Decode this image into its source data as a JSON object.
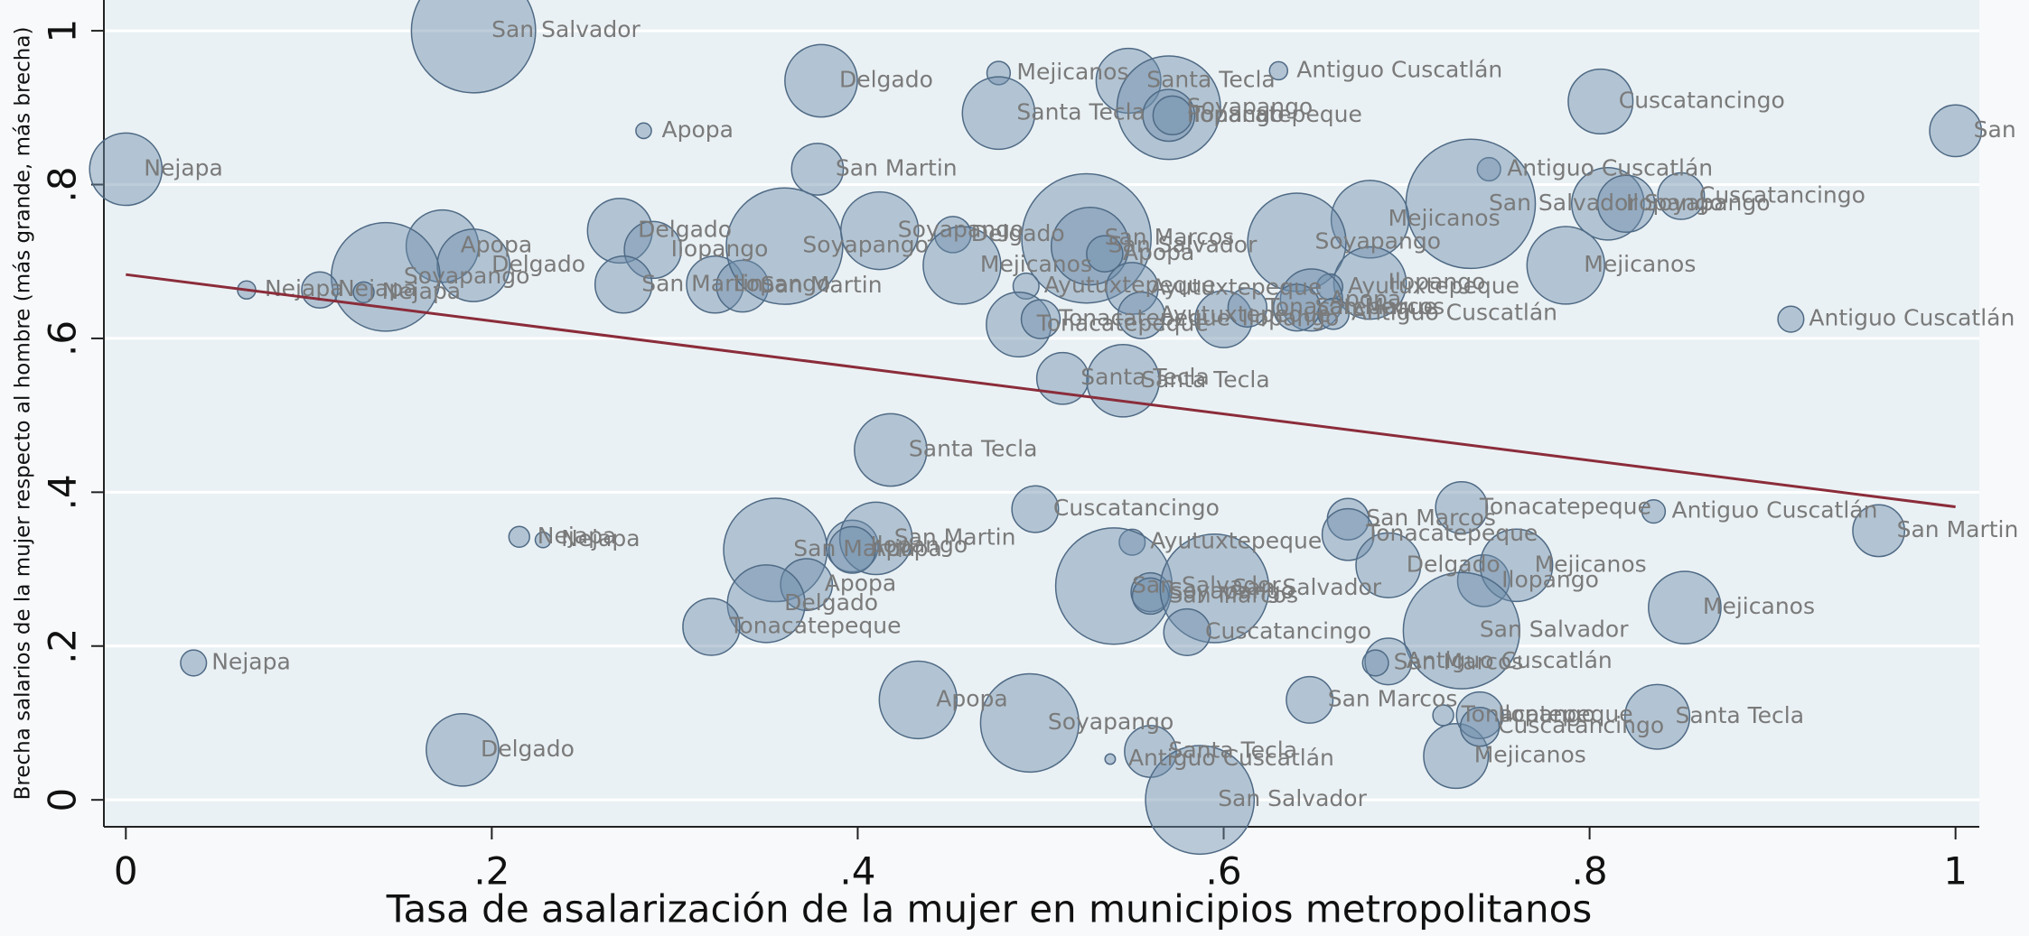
{
  "chart_data": {
    "type": "scatter",
    "x_label": "Tasa de asalarización de la mujer en municipios metropolitanos",
    "y_label": "Brecha salarios de la mujer respecto al hombre (más grande, más brecha)",
    "xlim": [
      -0.012,
      1.013
    ],
    "ylim": [
      -0.035,
      1.04
    ],
    "xticks": [
      0,
      {
        "value": 0.2,
        "label": ".2"
      },
      {
        "value": 0.4,
        "label": ".4"
      },
      {
        "value": 0.6,
        "label": ".6"
      },
      {
        "value": 0.8,
        "label": ".8"
      },
      1
    ],
    "yticks": [
      0,
      {
        "value": 0.2,
        "label": ".2"
      },
      {
        "value": 0.4,
        "label": ".4"
      },
      {
        "value": 0.6,
        "label": ".6"
      },
      {
        "value": 0.8,
        "label": ".8"
      },
      1
    ],
    "grid": true,
    "color": "#6f8eab",
    "fit_color": "#8b2c3a",
    "fit_line": {
      "x": [
        0,
        1
      ],
      "y": [
        0.683,
        0.381
      ]
    },
    "labels": [
      "San Salvador",
      "Delgado",
      "Mejicanos",
      "Antiguo Cuscatlán",
      "Santa Tecla",
      "Soyapango",
      "Ilopango",
      "Tonacatepeque",
      "Santa Tecla",
      "Cuscatancingo",
      "Apopa",
      "Nejapa",
      "San Martin",
      "San",
      "Antiguo Cuscatlán",
      "San Salvador",
      "Ilopango",
      "Soyapango",
      "Cuscatancingo",
      "Mejicanos",
      "Mejicanos",
      "Delgado",
      "Ilopango",
      "Apopa",
      "Delgado",
      "Soyapango",
      "Nejapa",
      "Nejapa",
      "Nejapa",
      "San Martin",
      "Ilopango",
      "San Martin",
      "Soyapango",
      "Soyapango",
      "Delgado",
      "Mejicanos",
      "San Marcos",
      "San Salvador",
      "Apopa",
      "Soyapango",
      "Ayutuxtepeque",
      "Ayutuxtepeque",
      "Ilopango",
      "Ayutuxtepeque",
      "Tonacatepeque",
      "Tonacatepeque",
      "Apopa",
      "San Marcos",
      "Ilopango",
      "Antiguo Cuscatlán",
      "Tonacatepeque",
      "Ayutuxtepeque",
      "Antiguo Cuscatlán",
      "Santa Tecla",
      "Santa Tecla",
      "Santa Tecla",
      "Cuscatancingo",
      "San Marcos",
      "Tonacatepeque",
      "Antiguo Cuscatlán",
      "San Martin",
      "Nejapa",
      "Nejapa",
      "San Martin",
      "Ilopango",
      "San Martin",
      "Apopa",
      "Apopa",
      "Delgado",
      "Tonacatepeque",
      "Ayutuxtepeque",
      "San Salvador",
      "Soyapango",
      "San Marcos",
      "San Salvador",
      "Cuscatancingo",
      "Tonacatepeque",
      "Delgado",
      "Ilopango",
      "Mejicanos",
      "San Salvador",
      "Mejicanos",
      "Antiguo Cuscatlán",
      "San Marcos",
      "San Marcos",
      "Apopa",
      "Soyapango",
      "Nejapa",
      "Delgado",
      "Santa Tecla",
      "Antiguo Cuscatlán",
      "San Salvador",
      "Santa Tecla",
      "Mejicanos",
      "Tonacatepeque",
      "Ilopango",
      "Cuscatancingo"
    ],
    "x": [
      0.19,
      0.38,
      0.477,
      0.63,
      0.548,
      0.57,
      0.57,
      0.572,
      0.477,
      0.806,
      0.283,
      0,
      0.378,
      1.0,
      0.745,
      0.735,
      0.81,
      0.82,
      0.85,
      0.68,
      0.787,
      0.27,
      0.288,
      0.173,
      0.19,
      0.142,
      0.13,
      0.066,
      0.106,
      0.272,
      0.322,
      0.337,
      0.36,
      0.412,
      0.452,
      0.457,
      0.525,
      0.527,
      0.535,
      0.64,
      0.492,
      0.55,
      0.68,
      0.658,
      0.488,
      0.5,
      0.648,
      0.64,
      0.6,
      0.66,
      0.613,
      0.555,
      0.91,
      0.512,
      0.545,
      0.418,
      0.497,
      0.668,
      0.73,
      0.835,
      0.958,
      0.215,
      0.228,
      0.355,
      0.397,
      0.41,
      0.397,
      0.372,
      0.35,
      0.32,
      0.55,
      0.54,
      0.56,
      0.56,
      0.595,
      0.58,
      0.668,
      0.69,
      0.742,
      0.76,
      0.73,
      0.852,
      0.69,
      0.683,
      0.647,
      0.433,
      0.494,
      0.037,
      0.184,
      0.56,
      0.538,
      0.587,
      0.837,
      0.727,
      0.72,
      0.74,
      0.74
    ],
    "values": [
      1.0,
      0.935,
      0.945,
      0.948,
      0.935,
      0.9,
      0.89,
      0.89,
      0.893,
      0.908,
      0.87,
      0.82,
      0.82,
      0.87,
      0.82,
      0.775,
      0.775,
      0.775,
      0.785,
      0.755,
      0.695,
      0.74,
      0.715,
      0.72,
      0.695,
      0.68,
      0.66,
      0.663,
      0.663,
      0.67,
      0.67,
      0.668,
      0.72,
      0.74,
      0.735,
      0.695,
      0.73,
      0.72,
      0.71,
      0.725,
      0.668,
      0.665,
      0.672,
      0.667,
      0.618,
      0.625,
      0.65,
      0.64,
      0.625,
      0.632,
      0.64,
      0.63,
      0.625,
      0.548,
      0.545,
      0.455,
      0.378,
      0.365,
      0.38,
      0.375,
      0.35,
      0.342,
      0.338,
      0.325,
      0.33,
      0.34,
      0.325,
      0.28,
      0.255,
      0.225,
      0.335,
      0.278,
      0.27,
      0.265,
      0.275,
      0.218,
      0.345,
      0.305,
      0.285,
      0.305,
      0.22,
      0.25,
      0.18,
      0.178,
      0.13,
      0.13,
      0.1,
      0.178,
      0.065,
      0.063,
      0.053,
      0,
      0.108,
      0.057,
      0.11,
      0.11,
      0.095
    ],
    "sizes": [
      48,
      28,
      9,
      7,
      25,
      40,
      20,
      15,
      28,
      25,
      6,
      28,
      20,
      20,
      9,
      50,
      28,
      22,
      18,
      30,
      30,
      25,
      22,
      28,
      28,
      42,
      8,
      7,
      14,
      22,
      22,
      20,
      45,
      30,
      14,
      30,
      50,
      30,
      14,
      38,
      10,
      20,
      28,
      10,
      25,
      15,
      24,
      18,
      22,
      12,
      15,
      18,
      10,
      20,
      28,
      28,
      18,
      16,
      20,
      9,
      20,
      8,
      6,
      40,
      20,
      28,
      18,
      20,
      30,
      22,
      10,
      45,
      15,
      14,
      42,
      18,
      20,
      25,
      20,
      28,
      45,
      28,
      18,
      10,
      18,
      30,
      38,
      10,
      28,
      20,
      4,
      42,
      25,
      25,
      8,
      18,
      15
    ]
  }
}
